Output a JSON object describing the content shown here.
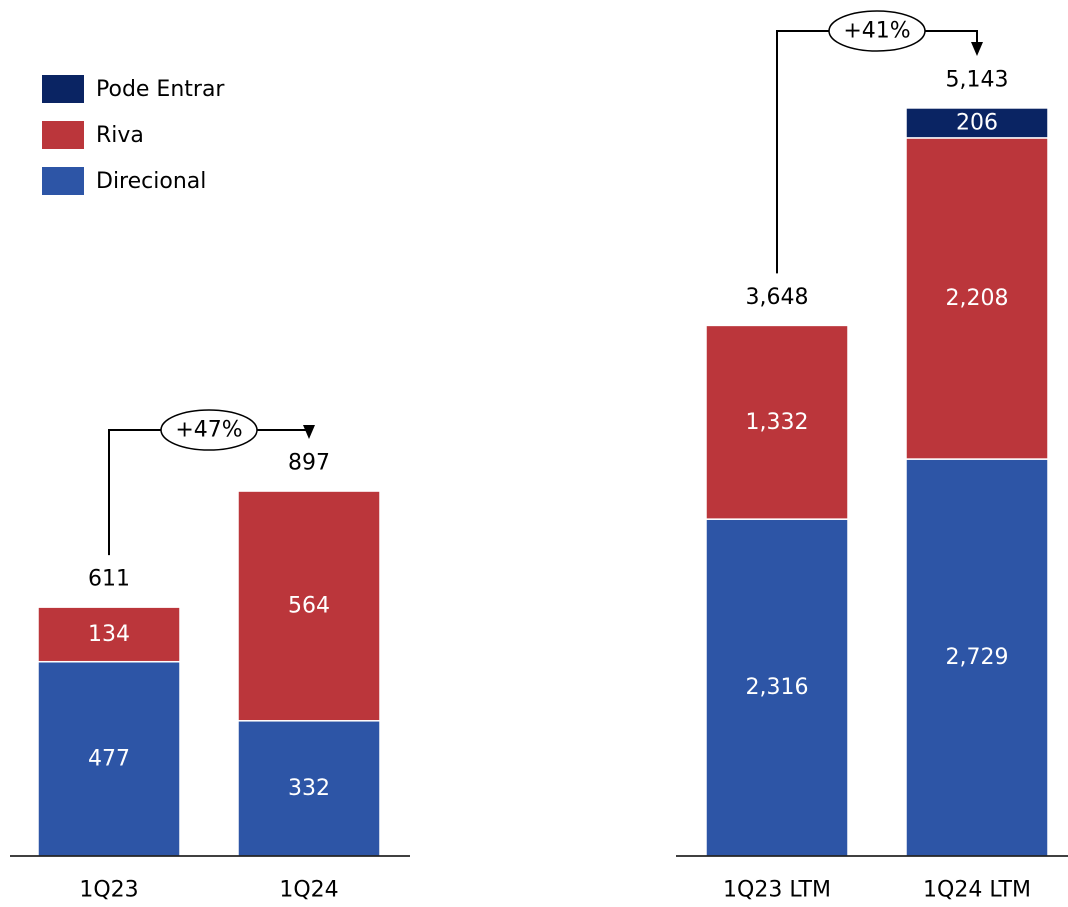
{
  "colors": {
    "pode_entrar": "#0a2463",
    "riva": "#bb363b",
    "direcional": "#2d55a6",
    "axis": "#000000",
    "bar_label": "#ffffff",
    "total_label": "#000000"
  },
  "legend": {
    "items": [
      {
        "label": "Pode Entrar",
        "color": "#0a2463"
      },
      {
        "label": "Riva",
        "color": "#bb363b"
      },
      {
        "label": "Direcional",
        "color": "#2d55a6"
      }
    ],
    "placement": "top-left"
  },
  "chart_data": [
    {
      "type": "bar",
      "stacked": true,
      "categories": [
        "1Q23",
        "1Q24"
      ],
      "series": [
        {
          "name": "Direcional",
          "values": [
            477,
            332
          ],
          "labels": [
            "477",
            "332"
          ]
        },
        {
          "name": "Riva",
          "values": [
            134,
            564
          ],
          "labels": [
            "134",
            "564"
          ]
        }
      ],
      "totals": [
        611,
        897
      ],
      "total_labels": [
        "611",
        "897"
      ],
      "growth_annotation": "+47%",
      "ylim": [
        0,
        960
      ]
    },
    {
      "type": "bar",
      "stacked": true,
      "categories": [
        "1Q23 LTM",
        "1Q24 LTM"
      ],
      "series": [
        {
          "name": "Direcional",
          "values": [
            2316,
            2729
          ],
          "labels": [
            "2,316",
            "2,729"
          ]
        },
        {
          "name": "Riva",
          "values": [
            1332,
            2208
          ],
          "labels": [
            "1,332",
            "2,208"
          ]
        },
        {
          "name": "Pode Entrar",
          "values": [
            0,
            206
          ],
          "labels": [
            "",
            "206"
          ]
        }
      ],
      "totals": [
        3648,
        5143
      ],
      "total_labels": [
        "3,648",
        "5,143"
      ],
      "growth_annotation": "+41%",
      "ylim": [
        0,
        5143
      ]
    }
  ]
}
